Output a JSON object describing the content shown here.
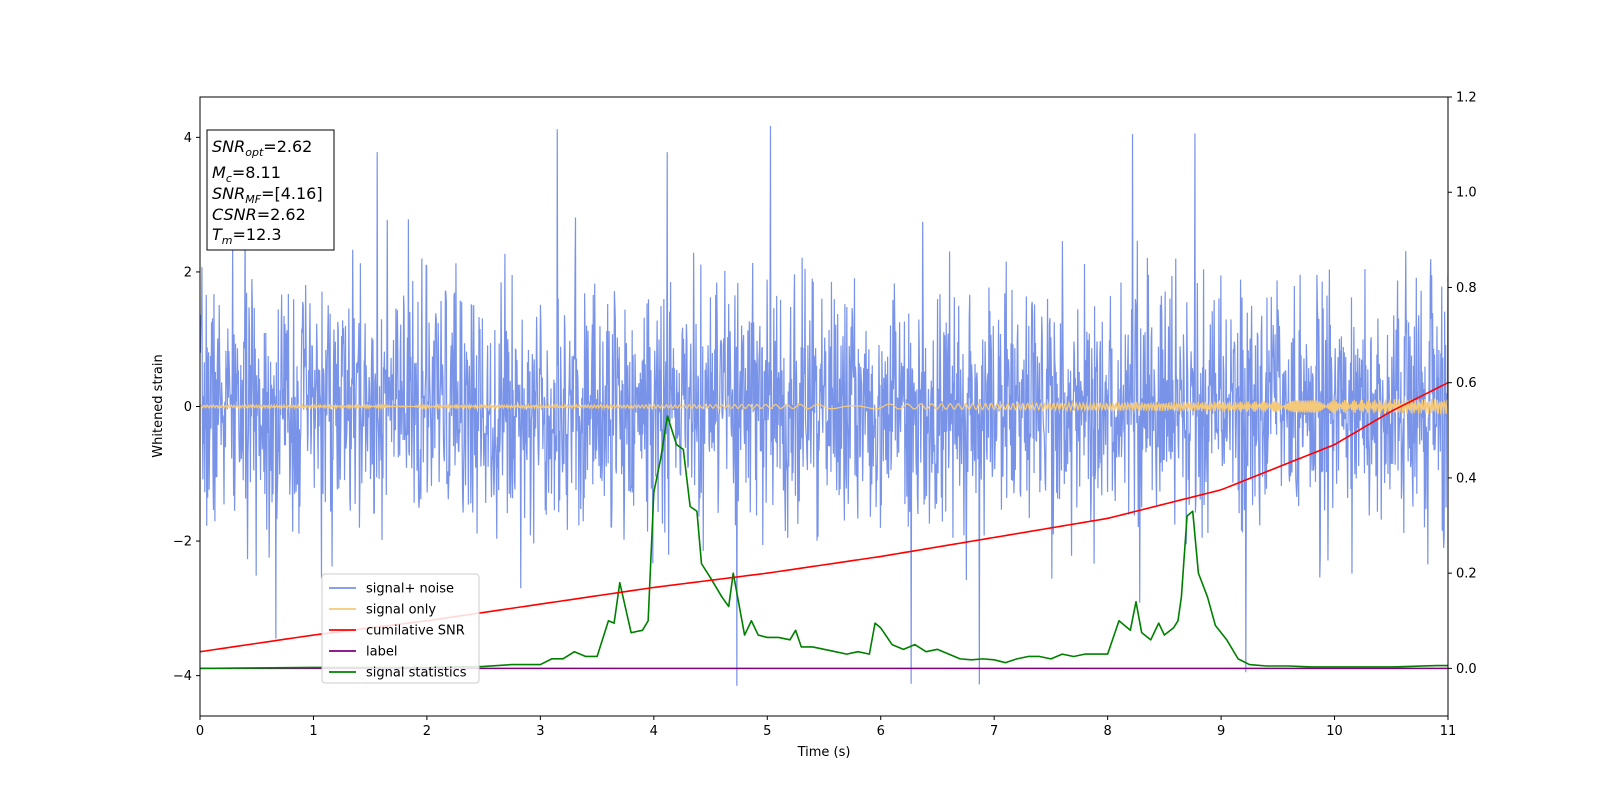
{
  "chart_data": {
    "type": "line",
    "xlabel": "Time (s)",
    "ylabel": "Whitened strain",
    "xlim": [
      0,
      11
    ],
    "ylim": [
      -4.6,
      4.6
    ],
    "ylim_right": [
      -0.1,
      1.2
    ],
    "xticks": [
      "0",
      "1",
      "2",
      "3",
      "4",
      "5",
      "6",
      "7",
      "8",
      "9",
      "10",
      "11"
    ],
    "yticks_left": [
      "−4",
      "−2",
      "0",
      "2",
      "4"
    ],
    "yticks_right": [
      "0.0",
      "0.2",
      "0.4",
      "0.6",
      "0.8",
      "1.0",
      "1.2"
    ],
    "legend_position": "lower-left",
    "stats_box": {
      "snr_opt": {
        "symbol": "SNR",
        "sub": "opt",
        "value": "=2.62"
      },
      "mc": {
        "symbol": "M",
        "sub": "c",
        "value": "=8.11"
      },
      "snr_mf": {
        "symbol": "SNR",
        "sub": "MF",
        "value": "=[4.16]"
      },
      "csnr": {
        "symbol": "CSNR",
        "sub": "",
        "value": "=2.62"
      },
      "tm": {
        "symbol": "T",
        "sub": "m",
        "value": "=12.3"
      }
    },
    "series": [
      {
        "name": "signal+ noise",
        "color": "#7893e8",
        "axis": "left",
        "description_stats": {
          "std": 0.9,
          "min": -4.15,
          "max": 4.18
        },
        "peaks": [
          {
            "x": 3.15,
            "y": 4.12
          },
          {
            "x": 5.03,
            "y": 4.17
          },
          {
            "x": 4.12,
            "y": 3.78
          },
          {
            "x": 1.56,
            "y": 3.78
          },
          {
            "x": 8.22,
            "y": 4.05
          },
          {
            "x": 8.77,
            "y": 4.06
          },
          {
            "x": 4.73,
            "y": -4.15
          },
          {
            "x": 6.27,
            "y": -4.12
          },
          {
            "x": 6.87,
            "y": -4.13
          },
          {
            "x": 9.22,
            "y": -3.95
          },
          {
            "x": 0.67,
            "y": -3.45
          }
        ]
      },
      {
        "name": "signal only",
        "color": "#f5c97a",
        "axis": "left",
        "amplitude_start": 0.02,
        "amplitude_end": 0.12
      },
      {
        "name": "cumilative SNR",
        "color": "#ff0000",
        "axis": "right",
        "x": [
          0,
          1,
          2,
          3,
          4,
          5,
          6,
          7,
          8,
          9,
          10,
          10.5,
          11
        ],
        "y": [
          0.035,
          0.07,
          0.1,
          0.135,
          0.17,
          0.2,
          0.235,
          0.275,
          0.315,
          0.375,
          0.47,
          0.54,
          0.6
        ]
      },
      {
        "name": "label",
        "color": "#800080",
        "axis": "right",
        "x": [
          0,
          11
        ],
        "y": [
          0.0,
          0.0
        ]
      },
      {
        "name": "signal statistics",
        "color": "#008000",
        "axis": "right",
        "x": [
          0,
          0.5,
          1.0,
          1.5,
          2.0,
          2.5,
          2.75,
          3.0,
          3.1,
          3.2,
          3.3,
          3.4,
          3.5,
          3.6,
          3.65,
          3.7,
          3.8,
          3.9,
          3.95,
          4.0,
          4.06,
          4.12,
          4.2,
          4.26,
          4.32,
          4.38,
          4.42,
          4.5,
          4.6,
          4.66,
          4.7,
          4.8,
          4.86,
          4.92,
          5.0,
          5.1,
          5.2,
          5.25,
          5.3,
          5.4,
          5.5,
          5.6,
          5.7,
          5.8,
          5.9,
          5.95,
          6.0,
          6.1,
          6.2,
          6.3,
          6.4,
          6.5,
          6.6,
          6.7,
          6.8,
          6.9,
          7.0,
          7.1,
          7.2,
          7.3,
          7.4,
          7.5,
          7.6,
          7.7,
          7.8,
          7.9,
          8.0,
          8.1,
          8.2,
          8.25,
          8.3,
          8.38,
          8.45,
          8.5,
          8.58,
          8.62,
          8.65,
          8.7,
          8.75,
          8.8,
          8.88,
          8.95,
          9.05,
          9.15,
          9.25,
          9.4,
          9.6,
          9.8,
          10.0,
          10.5,
          10.9,
          11.0
        ],
        "y": [
          0.0,
          0.001,
          0.002,
          0.002,
          0.002,
          0.004,
          0.008,
          0.008,
          0.02,
          0.02,
          0.035,
          0.025,
          0.025,
          0.1,
          0.095,
          0.18,
          0.075,
          0.08,
          0.1,
          0.37,
          0.44,
          0.53,
          0.47,
          0.46,
          0.34,
          0.33,
          0.22,
          0.19,
          0.15,
          0.13,
          0.2,
          0.07,
          0.1,
          0.07,
          0.065,
          0.065,
          0.06,
          0.08,
          0.045,
          0.045,
          0.04,
          0.035,
          0.03,
          0.035,
          0.03,
          0.095,
          0.085,
          0.05,
          0.04,
          0.05,
          0.035,
          0.04,
          0.03,
          0.02,
          0.018,
          0.02,
          0.018,
          0.012,
          0.02,
          0.025,
          0.025,
          0.02,
          0.03,
          0.025,
          0.03,
          0.03,
          0.03,
          0.1,
          0.08,
          0.14,
          0.075,
          0.06,
          0.095,
          0.07,
          0.085,
          0.1,
          0.15,
          0.32,
          0.33,
          0.2,
          0.15,
          0.09,
          0.06,
          0.02,
          0.008,
          0.005,
          0.005,
          0.003,
          0.003,
          0.003,
          0.006,
          0.006
        ]
      }
    ]
  }
}
